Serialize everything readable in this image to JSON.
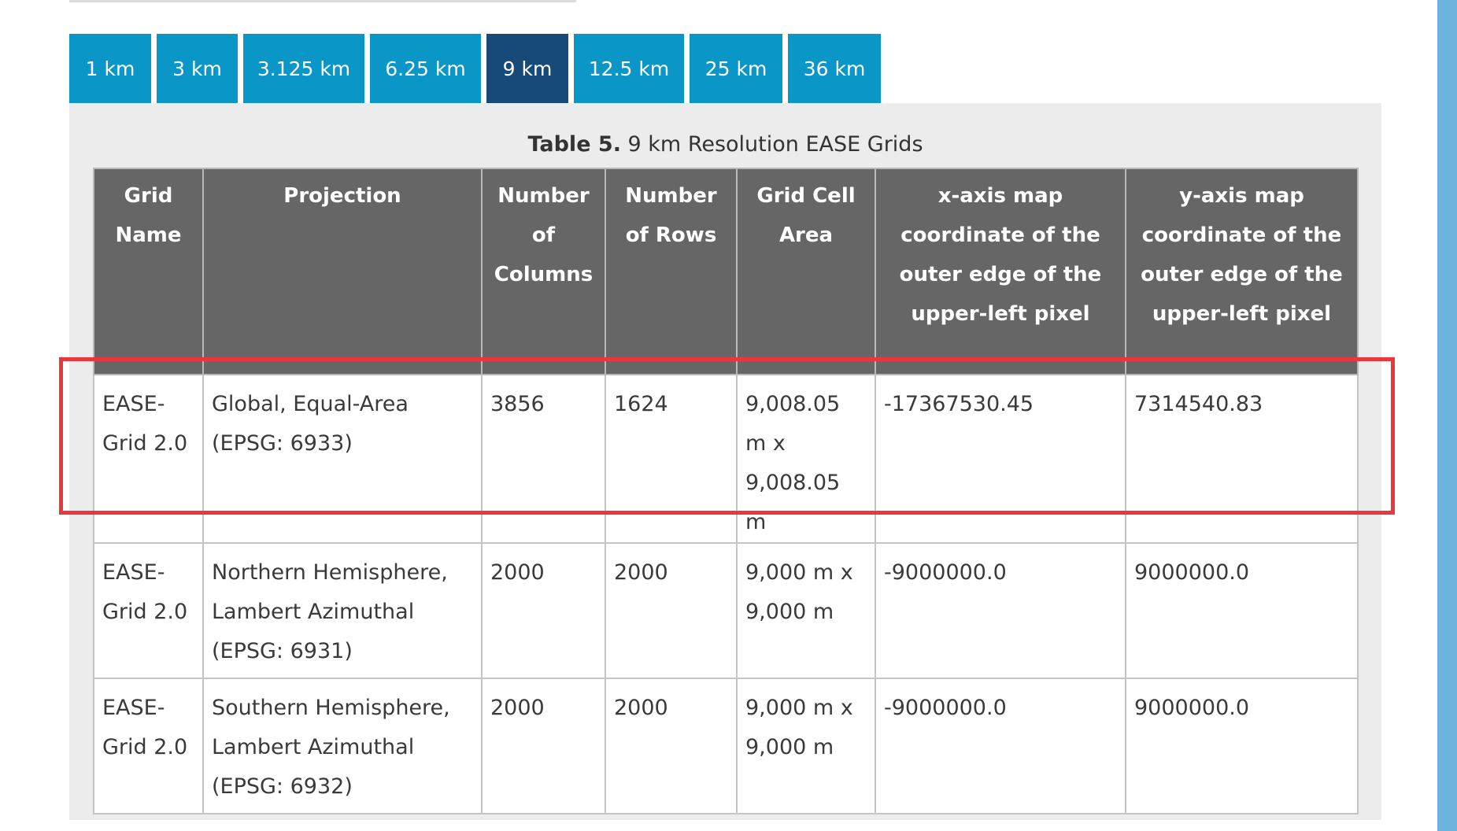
{
  "colors": {
    "tab_bg": "#0a96c6",
    "tab_active_bg": "#174a78",
    "table_header_bg": "#666666",
    "panel_bg": "#ececec",
    "highlight_border": "#e8383d",
    "side_bar": "#6cb3dd"
  },
  "tabs": [
    {
      "label": "1 km",
      "active": false
    },
    {
      "label": "3 km",
      "active": false
    },
    {
      "label": "3.125 km",
      "active": false
    },
    {
      "label": "6.25 km",
      "active": false
    },
    {
      "label": "9 km",
      "active": true
    },
    {
      "label": "12.5 km",
      "active": false
    },
    {
      "label": "25 km",
      "active": false
    },
    {
      "label": "36 km",
      "active": false
    }
  ],
  "table": {
    "caption_label": "Table 5.",
    "caption_text": " 9 km Resolution EASE Grids",
    "headers": [
      "Grid Name",
      "Projection",
      "Number of Columns",
      "Number of Rows",
      "Grid Cell Area",
      "x-axis map coordinate of the outer edge of the upper-left pixel",
      "y-axis map coordinate of the outer edge of the upper-left pixel"
    ],
    "rows": [
      {
        "grid_name": "EASE-Grid 2.0",
        "projection": "Global, Equal-Area (EPSG: 6933)",
        "columns": "3856",
        "rows": "1624",
        "cell_area": "9,008.05 m x 9,008.05 m",
        "x_coord": "-17367530.45",
        "y_coord": "7314540.83",
        "highlighted": true
      },
      {
        "grid_name": "EASE-Grid 2.0",
        "projection": "Northern Hemisphere, Lambert Azimuthal (EPSG: 6931)",
        "columns": "2000",
        "rows": "2000",
        "cell_area": "9,000 m x 9,000 m",
        "x_coord": "-9000000.0",
        "y_coord": "9000000.0",
        "highlighted": false
      },
      {
        "grid_name": "EASE-Grid 2.0",
        "projection": "Southern Hemisphere, Lambert Azimuthal (EPSG: 6932)",
        "columns": "2000",
        "rows": "2000",
        "cell_area": "9,000 m x 9,000 m",
        "x_coord": "-9000000.0",
        "y_coord": "9000000.0",
        "highlighted": false
      }
    ]
  }
}
